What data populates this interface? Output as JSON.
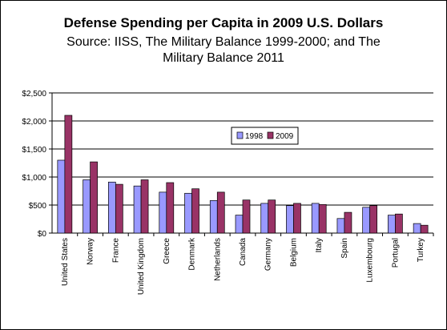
{
  "chart_data": {
    "type": "bar",
    "title": "Defense Spending per Capita in 2009 U.S. Dollars",
    "subtitle": "Source: IISS, The Military Balance 1999-2000; and The Military Balance 2011",
    "xlabel": "",
    "ylabel": "",
    "ylim": [
      0,
      2500
    ],
    "yticks": [
      "$0",
      "$500",
      "$1,000",
      "$1,500",
      "$2,000",
      "$2,500"
    ],
    "ytick_values": [
      0,
      500,
      1000,
      1500,
      2000,
      2500
    ],
    "grid": true,
    "legend_position": "center-right",
    "categories": [
      "United States",
      "Norway",
      "France",
      "United Kingdom",
      "Greece",
      "Denmark",
      "Netherlands",
      "Canada",
      "Germany",
      "Belgium",
      "Italy",
      "Spain",
      "Luxembourg",
      "Portugal",
      "Turkey"
    ],
    "series": [
      {
        "name": "1998",
        "color": "#9999ff",
        "values": [
          1300,
          950,
          910,
          840,
          730,
          710,
          580,
          320,
          530,
          490,
          530,
          260,
          460,
          320,
          170
        ]
      },
      {
        "name": "2009",
        "color": "#993366",
        "values": [
          2100,
          1270,
          870,
          950,
          900,
          790,
          730,
          590,
          590,
          530,
          510,
          370,
          490,
          340,
          140
        ]
      }
    ]
  }
}
